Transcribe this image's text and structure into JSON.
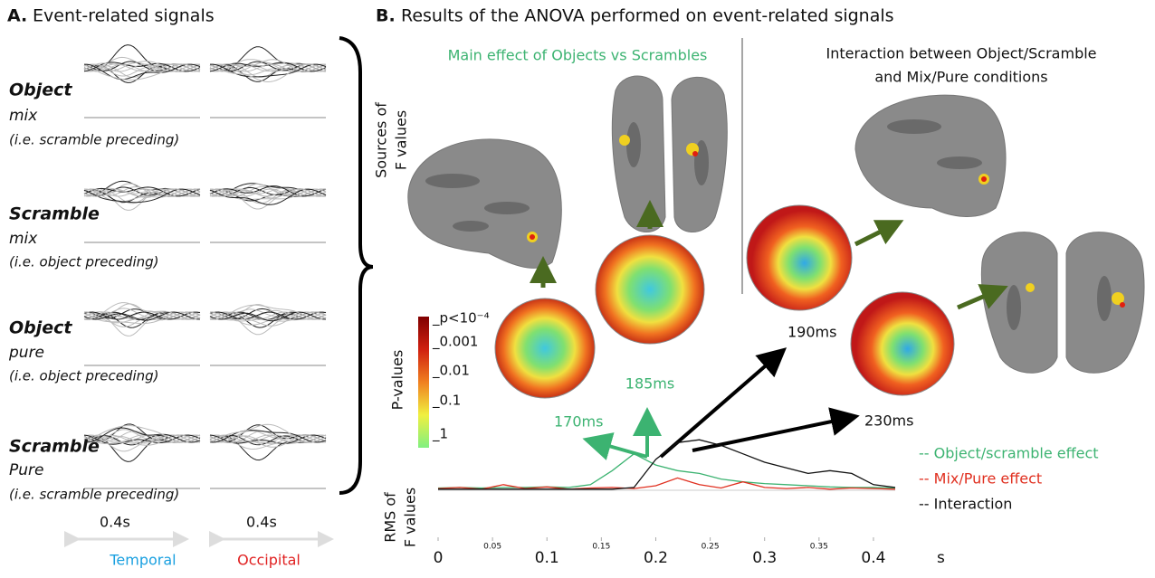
{
  "panel_a": {
    "label": "A.",
    "title": "Event-related signals",
    "conditions": [
      {
        "name": "Object",
        "type": "mix",
        "note": "(i.e. scramble preceding)"
      },
      {
        "name": "Scramble",
        "type": "mix",
        "note": "(i.e. object  preceding)"
      },
      {
        "name": "Object",
        "type": "pure",
        "note": "(i.e. object  preceding)"
      },
      {
        "name": "Scramble",
        "type": "Pure",
        "note": "(i.e. scramble preceding)"
      }
    ],
    "durations": [
      "0.4s",
      "0.4s"
    ],
    "regions": [
      "Temporal",
      "Occipital"
    ]
  },
  "panel_b": {
    "label": "B.",
    "title": "Results of the ANOVA performed on event-related signals",
    "main_effect": "Main effect of Objects vs Scrambles",
    "interaction": [
      "Interaction between Object/Scramble",
      "and Mix/Pure conditions"
    ],
    "sources_label": [
      "Sources of",
      "F values"
    ],
    "pvalues_label": "P-values",
    "colorbar_labels": [
      "_p<10⁻⁴",
      "_0.001",
      "_0.01",
      "_0.1",
      "_1"
    ],
    "times": [
      "170ms",
      "185ms",
      "190ms",
      "230ms"
    ]
  },
  "chart_data": {
    "type": "line",
    "y_label": [
      "RMS of",
      "F values"
    ],
    "x_unit": "s",
    "x": [
      0,
      0.02,
      0.04,
      0.06,
      0.08,
      0.1,
      0.12,
      0.14,
      0.16,
      0.18,
      0.2,
      0.22,
      0.24,
      0.26,
      0.28,
      0.3,
      0.32,
      0.34,
      0.36,
      0.38,
      0.4,
      0.42
    ],
    "series": [
      {
        "name": "-- Object/scramble effect",
        "color": "#3cb371",
        "values": [
          0.04,
          0.05,
          0.04,
          0.05,
          0.05,
          0.06,
          0.05,
          0.1,
          0.35,
          0.65,
          0.45,
          0.35,
          0.3,
          0.2,
          0.15,
          0.12,
          0.1,
          0.08,
          0.06,
          0.05,
          0.05,
          0.04
        ]
      },
      {
        "name": "-- Mix/Pure effect",
        "color": "#e03020",
        "values": [
          0.03,
          0.05,
          0.02,
          0.1,
          0.03,
          0.06,
          0.02,
          0.04,
          0.05,
          0.03,
          0.08,
          0.22,
          0.1,
          0.04,
          0.15,
          0.05,
          0.03,
          0.05,
          0.02,
          0.04,
          0.03,
          0.02
        ]
      },
      {
        "name": "-- Interaction",
        "color": "#111111",
        "values": [
          0.02,
          0.02,
          0.02,
          0.02,
          0.02,
          0.02,
          0.02,
          0.02,
          0.02,
          0.05,
          0.55,
          0.85,
          0.9,
          0.8,
          0.65,
          0.5,
          0.4,
          0.3,
          0.35,
          0.3,
          0.1,
          0.05
        ]
      }
    ],
    "xlim": [
      0,
      0.42
    ],
    "ylim": [
      0,
      1
    ],
    "xticks": [
      0,
      0.05,
      0.1,
      0.15,
      0.2,
      0.25,
      0.3,
      0.35,
      0.4
    ]
  }
}
